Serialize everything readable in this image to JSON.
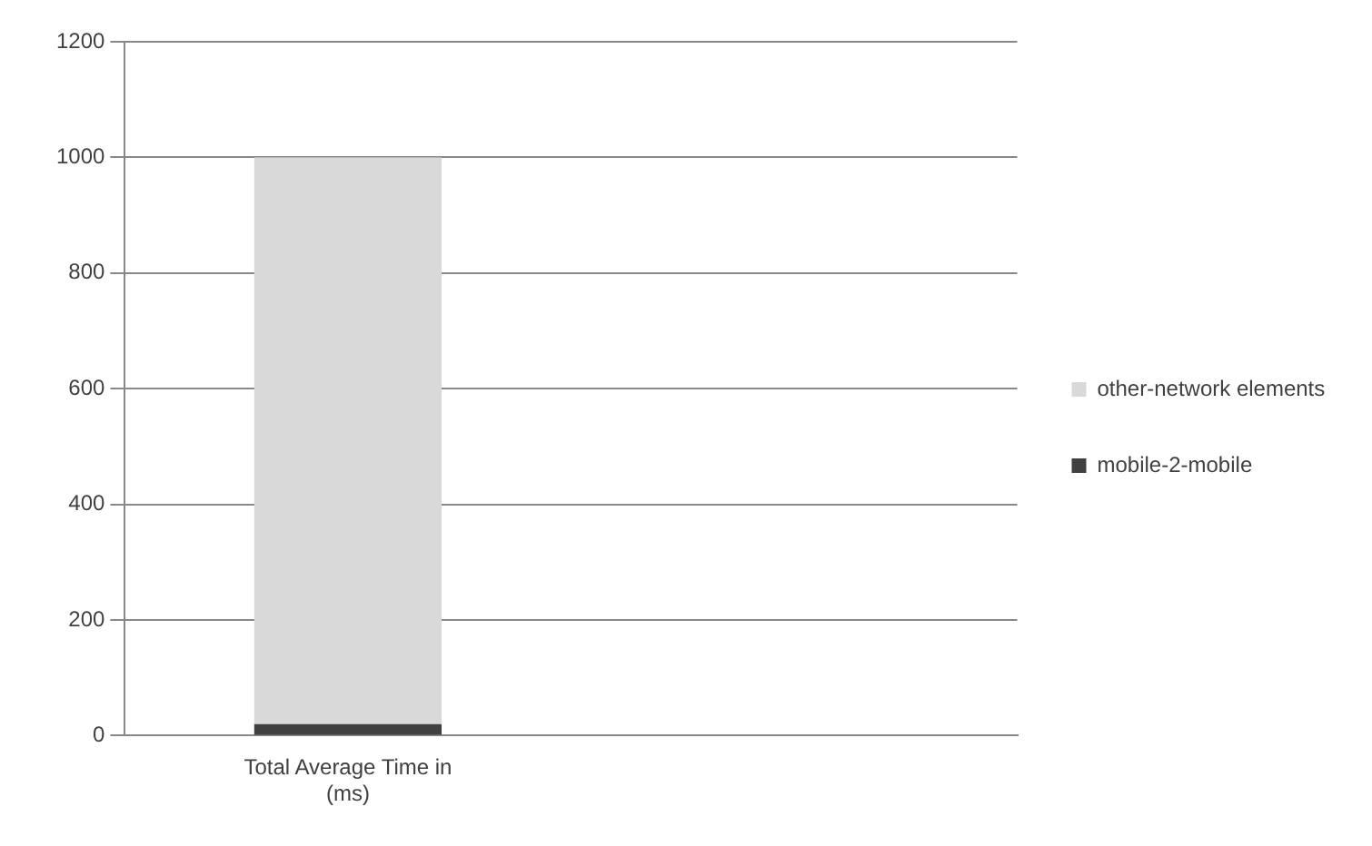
{
  "chart_data": {
    "type": "bar",
    "stacked": true,
    "categories": [
      "Total Average Time in (ms)",
      null
    ],
    "series": [
      {
        "name": "mobile-2-mobile",
        "color": "#404040",
        "values": [
          20,
          null
        ]
      },
      {
        "name": "other-network elements",
        "color": "#d9d9d9",
        "values": [
          980,
          null
        ]
      }
    ],
    "ylim": [
      0,
      1200
    ],
    "yticks": [
      0,
      200,
      400,
      600,
      800,
      1000,
      1200
    ],
    "grid": "y",
    "legend": "right"
  }
}
